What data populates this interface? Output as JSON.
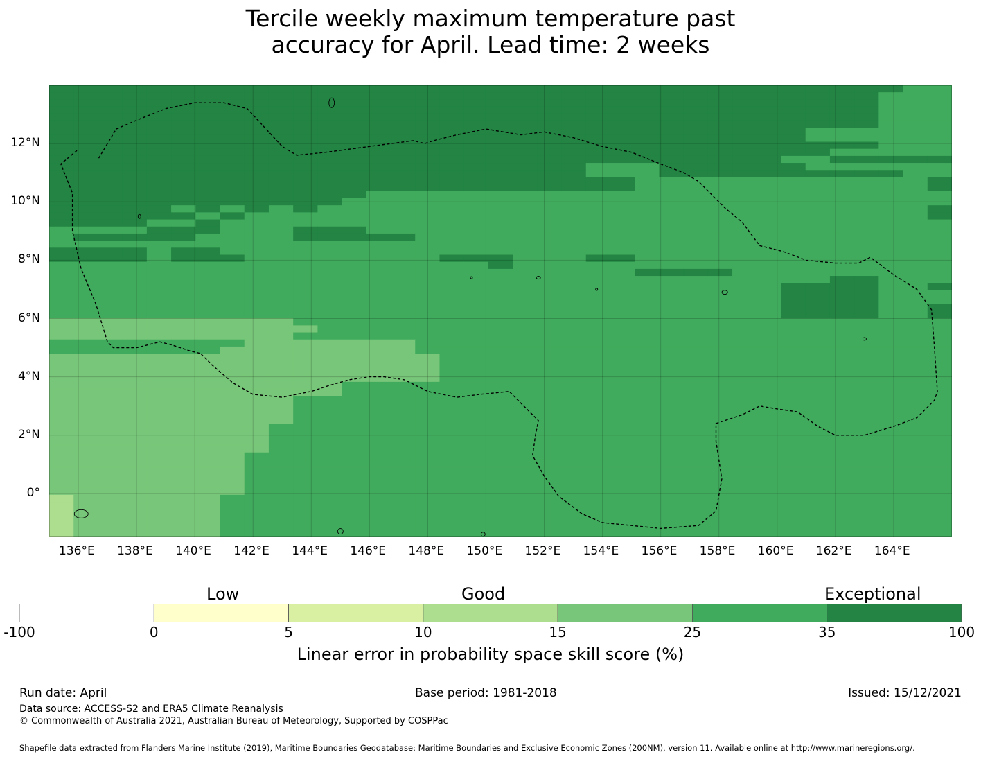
{
  "title_line1": "Tercile weekly maximum temperature past",
  "title_line2": "accuracy for April. Lead time: 2 weeks",
  "map": {
    "lon_range": [
      134.0,
      166.0
    ],
    "lat_range": [
      -1.5,
      14.0
    ],
    "lon_labels": [
      "136°E",
      "138°E",
      "140°E",
      "142°E",
      "144°E",
      "146°E",
      "148°E",
      "150°E",
      "152°E",
      "154°E",
      "156°E",
      "158°E",
      "160°E",
      "162°E",
      "164°E"
    ],
    "lat_labels": [
      "12°N",
      "10°N",
      "8°N",
      "6°N",
      "4°N",
      "2°N",
      "0°"
    ],
    "score_class_colors": [
      "#ffffff",
      "#ffffcc",
      "#d9f0a3",
      "#addd8e",
      "#78c679",
      "#41ab5d",
      "#238443"
    ],
    "grid_rows_north_to_south": [
      "6666666666666666666666666666666666655",
      "6666666666666666666666666666666666555",
      "6666666666666666666666666666666666555",
      "6666666666666666666666666666666666555",
      "6666666666666666666666666666666666555",
      "6666666666666666666666666666666666555",
      "6666666666666666666666666666666555555",
      "6666666666666666666666666666666555555",
      "6666666666666666666666666666666666555",
      "6666666666666666666666666666666655555",
      "6666666666666666666666666666665566666",
      "6666666666666666666666555666666555555",
      "6666666666666666666666555666666666655",
      "6666666666666666666666665555555555556",
      "6666666666666666666666665555555555556",
      "6666666666666555555555555555555555555",
      "6666666666665555555555555555555555555",
      "6666656565655555555555555555555555556",
      "6666665655555555555555555555555555556",
      "6666556555555555555555555555555555555",
      "5555666555666555555555555555555555555",
      "5666665555666665555555555555555555555",
      "5555555555555555555555555555555555555",
      "6666566555555555555555555555555555555",
      "6666566655555555666555665555555555555",
      "5555555555555555556555555555555555555",
      "5555555555555555555555556666555555555",
      "5555555555555555555555555555555566555",
      "5555555555555555555555555555556666556",
      "5555555555555555555555555555556666555",
      "5555555555555555555555555555556666555",
      "5555555555555555555555555555556666556",
      "5555555555555555555555555555556666556",
      "4444444444555555555555555555555555555",
      "4444444444455555555555555555555555555",
      "4444444444555555555555555555555555555",
      "5555555544444445555555555555555555555",
      "5555555444444445555555555555555555555",
      "4444444444444444555555555555555555555",
      "4444444444444444555555555555555555555",
      "4444444444444444555555555555555555555",
      "4444444444444444555555555555555555555",
      "4444444444445555555555555555555555555",
      "4444444444445555555555555555555555555",
      "4444444444555555555555555555555555555",
      "4444444444555555555555555555555555555",
      "4444444444555555555555555555555555555",
      "4444444444555555555555555555555555555",
      "4444444445555555555555555555555555555",
      "4444444445555555555555555555555555555",
      "4444444445555555555555555555555555555",
      "4444444445555555555555555555555555555",
      "4444444455555555555555555555555555555",
      "4444444455555555555555555555555555555",
      "4444444455555555555555555555555555555",
      "4444444455555555555555555555555555555",
      "4444444455555555555555555555555555555",
      "4444444455555555555555555555555555555",
      "3444444555555555555555555555555555555",
      "3444444555555555555555555555555555555",
      "3444444555555555555555555555555555555",
      "3444444555555555555555555555555555555",
      "3444444555555555555555555555555555555",
      "3444444555555555555555555555555555555"
    ]
  },
  "colorbar": {
    "word_low": "Low",
    "word_good": "Good",
    "word_exceptional": "Exceptional",
    "tick_labels": [
      "-100",
      "0",
      "5",
      "10",
      "15",
      "25",
      "35",
      "100"
    ],
    "label": "Linear error in probability space skill score (%)"
  },
  "footer": {
    "run_date": "Run date: April",
    "base_period": "Base period: 1981-2018",
    "issued": "Issued: 15/12/2021",
    "data_source": "Data source: ACCESS-S2 and ERA5 Climate Reanalysis",
    "copyright": "© Commonwealth of Australia 2021, Australian Bureau of Meteorology, Supported by COSPPac",
    "shapefile": "Shapefile data extracted from Flanders Marine Institute (2019), Maritime Boundaries Geodatabase: Maritime Boundaries and Exclusive Economic Zones (200NM), version 11. Available online at http://www.marineregions.org/."
  }
}
